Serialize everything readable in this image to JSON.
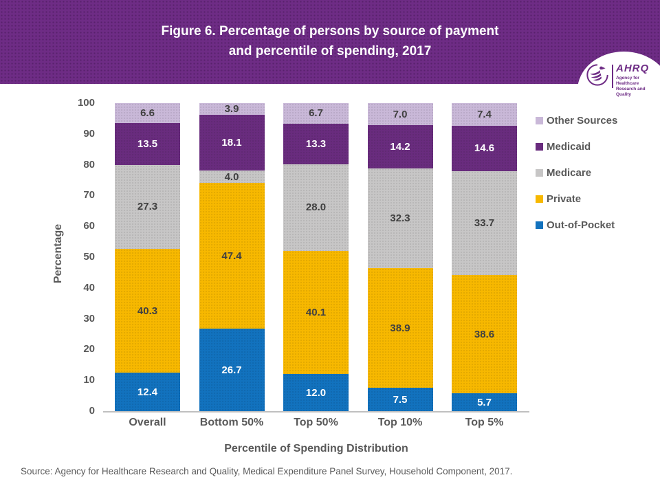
{
  "header": {
    "title_line1": "Figure 6. Percentage of persons by source of payment",
    "title_line2": "and percentile of spending, 2017"
  },
  "logo": {
    "org": "AHRQ",
    "tagline_line1": "Agency for Healthcare",
    "tagline_line2": "Research and Quality"
  },
  "chart_data": {
    "type": "bar",
    "stacked": true,
    "title": "Figure 6. Percentage of persons by source of payment and percentile of spending, 2017",
    "categories": [
      "Overall",
      "Bottom 50%",
      "Top 50%",
      "Top 10%",
      "Top 5%"
    ],
    "series": [
      {
        "name": "Out-of-Pocket",
        "color": "#1272BE",
        "label_color": "#FFFFFF",
        "values": [
          12.4,
          26.7,
          12.0,
          7.5,
          5.7
        ]
      },
      {
        "name": "Private",
        "color": "#F7B800",
        "label_color": "#404040",
        "values": [
          40.3,
          47.4,
          40.1,
          38.9,
          38.6
        ]
      },
      {
        "name": "Medicare",
        "color": "#C7C6C6",
        "label_color": "#404040",
        "values": [
          27.3,
          4.0,
          28.0,
          32.3,
          33.7
        ]
      },
      {
        "name": "Medicaid",
        "color": "#692C7E",
        "label_color": "#FFFFFF",
        "values": [
          13.5,
          18.1,
          13.3,
          14.2,
          14.6
        ]
      },
      {
        "name": "Other Sources",
        "color": "#C9B8D8",
        "label_color": "#404040",
        "values": [
          6.6,
          3.9,
          6.7,
          7.0,
          7.4
        ]
      }
    ],
    "xlabel": "Percentile of Spending Distribution",
    "ylabel": "Percentage",
    "ylim": [
      0,
      100
    ],
    "yticks": [
      0,
      10,
      20,
      30,
      40,
      50,
      60,
      70,
      80,
      90,
      100
    ],
    "grid": false,
    "legend_position": "right",
    "legend_order_top_to_bottom": [
      "Other Sources",
      "Medicaid",
      "Medicare",
      "Private",
      "Out-of-Pocket"
    ]
  },
  "source_note": "Source: Agency for Healthcare Research and Quality, Medical Expenditure Panel Survey, Household Component, 2017.",
  "colors": {
    "header_bg": "#6E2C85",
    "axis_text": "#595959",
    "axis_line": "#BFBFBF",
    "data_label_light": "#FFFFFF",
    "data_label_dark": "#404040"
  }
}
